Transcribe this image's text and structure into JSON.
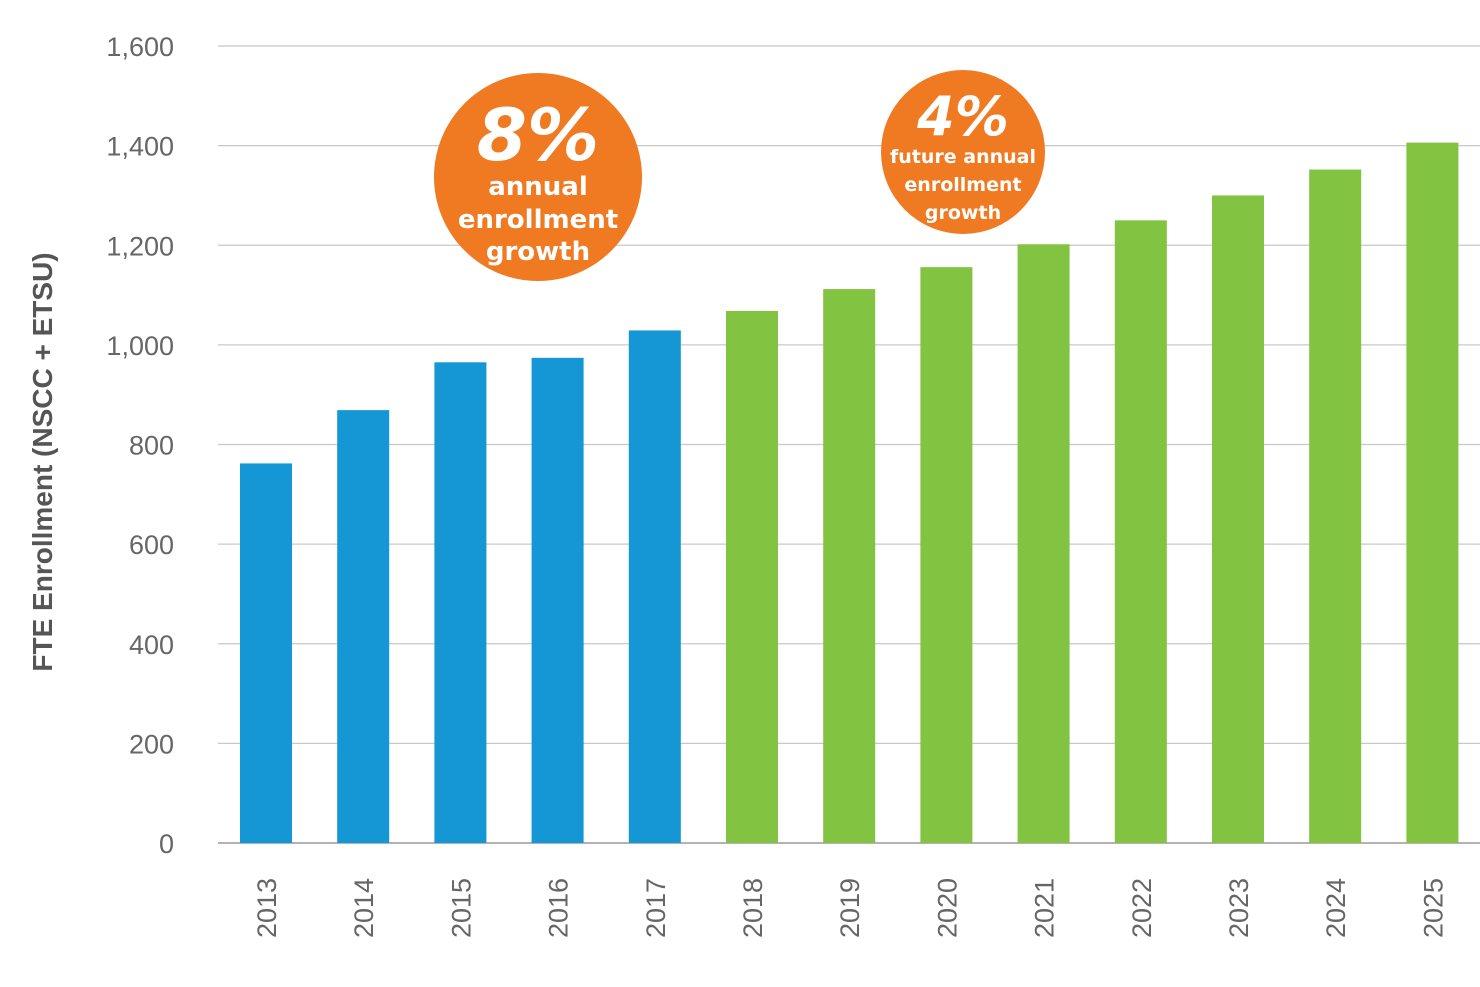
{
  "chart_data": {
    "type": "bar",
    "ylabel": "FTE Enrollment (NSCC + ETSU)",
    "ylim": [
      0,
      1600
    ],
    "yticks": [
      "0",
      "200",
      "400",
      "600",
      "800",
      "1,000",
      "1,200",
      "1,400",
      "1,600"
    ],
    "grid": true,
    "categories": [
      "2013",
      "2014",
      "2015",
      "2016",
      "2017",
      "2018",
      "2019",
      "2020",
      "2021",
      "2022",
      "2023",
      "2024",
      "2025"
    ],
    "values": [
      762,
      869,
      965,
      974,
      1029,
      1068,
      1112,
      1156,
      1202,
      1250,
      1300,
      1352,
      1406
    ],
    "bar_groups": [
      {
        "range": "2013-2017",
        "color": "#1497d4"
      },
      {
        "range": "2018-2025",
        "color": "#82c341"
      }
    ],
    "annotations": [
      {
        "big": "8%",
        "lines": [
          "annual",
          "enrollment",
          "growth"
        ],
        "color": "#f07a22"
      },
      {
        "big": "4%",
        "lines": [
          "future annual",
          "enrollment",
          "growth"
        ],
        "color": "#f07a22"
      }
    ]
  }
}
